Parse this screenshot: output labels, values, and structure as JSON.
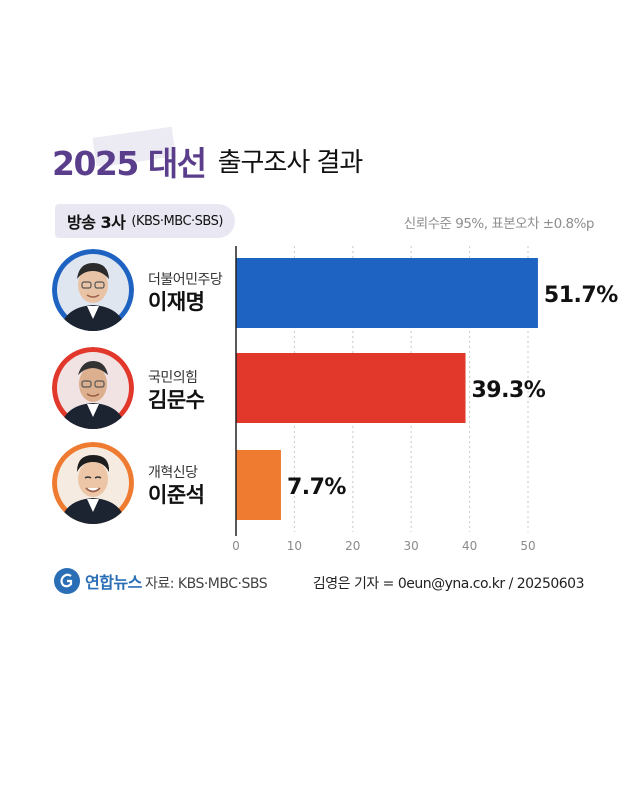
{
  "header": {
    "title_main": "2025 대선",
    "title_sub": "출구조사 결과"
  },
  "subheader": {
    "pill_title": "방송 3사",
    "pill_sub": "(KBS·MBC·SBS)",
    "note": "신뢰수준 95%, 표본오차 ±0.8%p"
  },
  "candidates": [
    {
      "party": "더불어민주당",
      "name": "이재명",
      "value_label": "51.7%",
      "color": "#1f63c2",
      "ring": "#1f63c2"
    },
    {
      "party": "국민의힘",
      "name": "김문수",
      "value_label": "39.3%",
      "color": "#e2382c",
      "ring": "#e2382c"
    },
    {
      "party": "개혁신당",
      "name": "이준석",
      "value_label": "7.7%",
      "color": "#ef7b30",
      "ring": "#ef7b30"
    }
  ],
  "chart_data": {
    "type": "bar",
    "orientation": "horizontal",
    "categories": [
      "이재명",
      "김문수",
      "이준석"
    ],
    "values": [
      51.7,
      39.3,
      7.7
    ],
    "value_labels": [
      "51.7%",
      "39.3%",
      "7.7%"
    ],
    "colors": [
      "#1f63c2",
      "#e2382c",
      "#ef7b30"
    ],
    "xlim": [
      0,
      55
    ],
    "xticks": [
      0,
      10,
      20,
      30,
      40,
      50
    ],
    "grid": "vertical dashed"
  },
  "footer": {
    "logo_text": "연합뉴스",
    "source": "자료: KBS·MBC·SBS",
    "credit": "김영은 기자 = 0eun@yna.co.kr / 20250603"
  }
}
